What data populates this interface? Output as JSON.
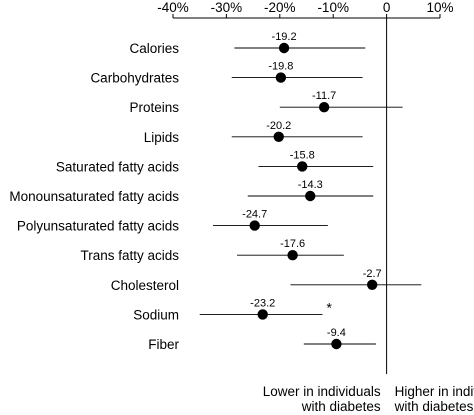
{
  "chart_data": {
    "type": "forest",
    "x_unit": "%",
    "xlim": [
      -40,
      10
    ],
    "x_ticks": [
      -40,
      -30,
      -20,
      -10,
      0,
      10
    ],
    "x_tick_labels": [
      "-40%",
      "-30%",
      "-20%",
      "-10%",
      "0",
      "10%"
    ],
    "reference_line": 0,
    "categories": [
      "Calories",
      "Carbohydrates",
      "Proteins",
      "Lipids",
      "Saturated fatty acids",
      "Monounsaturated fatty acids",
      "Polyunsaturated fatty acids",
      "Trans fatty acids",
      "Cholesterol",
      "Sodium",
      "Fiber"
    ],
    "values": [
      -19.2,
      -19.8,
      -11.7,
      -20.2,
      -15.8,
      -14.3,
      -24.7,
      -17.6,
      -2.7,
      -23.2,
      -9.4
    ],
    "value_labels": [
      "-19.2",
      "-19.8",
      "-11.7",
      "-20.2",
      "-15.8",
      "-14.3",
      "-24.7",
      "-17.6",
      "-2.7",
      "-23.2",
      "-9.4"
    ],
    "ci_lower": [
      -28.5,
      -29.0,
      -20.0,
      -29.0,
      -24.0,
      -26.0,
      -32.5,
      -28.0,
      -18.0,
      -35.0,
      -15.5
    ],
    "ci_upper": [
      -4.0,
      -4.5,
      3.0,
      -4.5,
      -2.5,
      -2.5,
      -11.0,
      -8.0,
      6.5,
      -12.0,
      -2.0
    ],
    "annotations": [
      {
        "category": "Sodium",
        "text": "*"
      }
    ],
    "footer_labels": {
      "left": [
        "Lower in individuals",
        "with diabetes"
      ],
      "right": [
        "Higher in individuals",
        "with diabetes"
      ]
    }
  }
}
